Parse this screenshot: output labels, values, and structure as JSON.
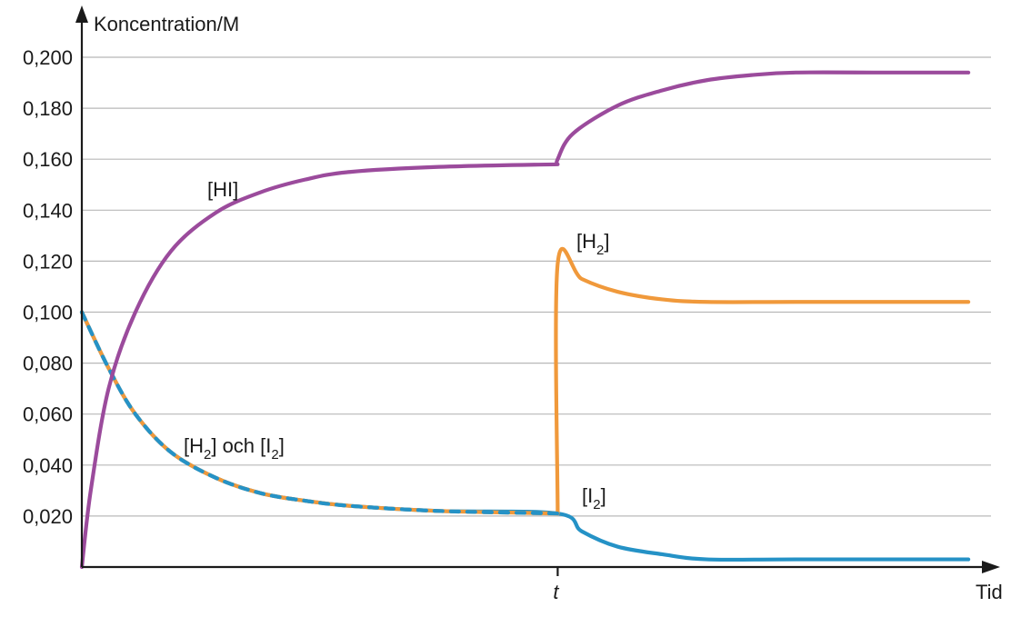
{
  "chart_data": {
    "type": "line",
    "ylabel": "Koncentration/M",
    "xlabel": "Tid",
    "x_marker": "t",
    "ylim": [
      0,
      0.2
    ],
    "y_ticks": [
      "0,020",
      "0,040",
      "0,060",
      "0,080",
      "0,100",
      "0,120",
      "0,140",
      "0,160",
      "0,180",
      "0,200"
    ],
    "y_tick_values": [
      0.02,
      0.04,
      0.06,
      0.08,
      0.1,
      0.12,
      0.14,
      0.16,
      0.18,
      0.2
    ],
    "grid": true,
    "x_domain": [
      0,
      1
    ],
    "t_value": 0.533,
    "colors": {
      "HI": "#9b4b9c",
      "H2": "#f0993b",
      "I2": "#2592c6"
    },
    "series": [
      {
        "name": "[HI]",
        "label_main": "[HI]",
        "color": "#9b4b9c",
        "points": [
          [
            0,
            0.0
          ],
          [
            0.01,
            0.03
          ],
          [
            0.03,
            0.07
          ],
          [
            0.06,
            0.1
          ],
          [
            0.1,
            0.124
          ],
          [
            0.15,
            0.139
          ],
          [
            0.2,
            0.147
          ],
          [
            0.25,
            0.152
          ],
          [
            0.3,
            0.155
          ],
          [
            0.4,
            0.157
          ],
          [
            0.533,
            0.158
          ],
          [
            0.533,
            0.16
          ],
          [
            0.55,
            0.17
          ],
          [
            0.6,
            0.181
          ],
          [
            0.65,
            0.187
          ],
          [
            0.7,
            0.191
          ],
          [
            0.75,
            0.193
          ],
          [
            0.8,
            0.194
          ],
          [
            0.9,
            0.194
          ],
          [
            0.993,
            0.194
          ]
        ]
      },
      {
        "name": "[H2]",
        "label_main": "[H",
        "label_sub": "2",
        "label_end": "]",
        "color": "#f0993b",
        "points": [
          [
            0,
            0.1
          ],
          [
            0.03,
            0.078
          ],
          [
            0.06,
            0.06
          ],
          [
            0.1,
            0.045
          ],
          [
            0.15,
            0.035
          ],
          [
            0.2,
            0.029
          ],
          [
            0.25,
            0.026
          ],
          [
            0.3,
            0.024
          ],
          [
            0.4,
            0.022
          ],
          [
            0.533,
            0.021
          ],
          [
            0.533,
            0.119
          ],
          [
            0.56,
            0.113
          ],
          [
            0.6,
            0.108
          ],
          [
            0.65,
            0.105
          ],
          [
            0.7,
            0.104
          ],
          [
            0.8,
            0.104
          ],
          [
            0.993,
            0.104
          ]
        ]
      },
      {
        "name": "[I2]",
        "label_main": "[I",
        "label_sub": "2",
        "label_end": "]",
        "color": "#2592c6",
        "points": [
          [
            0,
            0.1
          ],
          [
            0.03,
            0.078
          ],
          [
            0.06,
            0.06
          ],
          [
            0.1,
            0.045
          ],
          [
            0.15,
            0.035
          ],
          [
            0.2,
            0.029
          ],
          [
            0.25,
            0.026
          ],
          [
            0.3,
            0.024
          ],
          [
            0.4,
            0.022
          ],
          [
            0.533,
            0.021
          ],
          [
            0.56,
            0.014
          ],
          [
            0.6,
            0.008
          ],
          [
            0.65,
            0.005
          ],
          [
            0.7,
            0.003
          ],
          [
            0.8,
            0.003
          ],
          [
            0.993,
            0.003
          ]
        ]
      }
    ],
    "combined_label": {
      "a_main": "[H",
      "a_sub": "2",
      "mid": "] och [I",
      "b_sub": "2",
      "end": "]"
    }
  }
}
